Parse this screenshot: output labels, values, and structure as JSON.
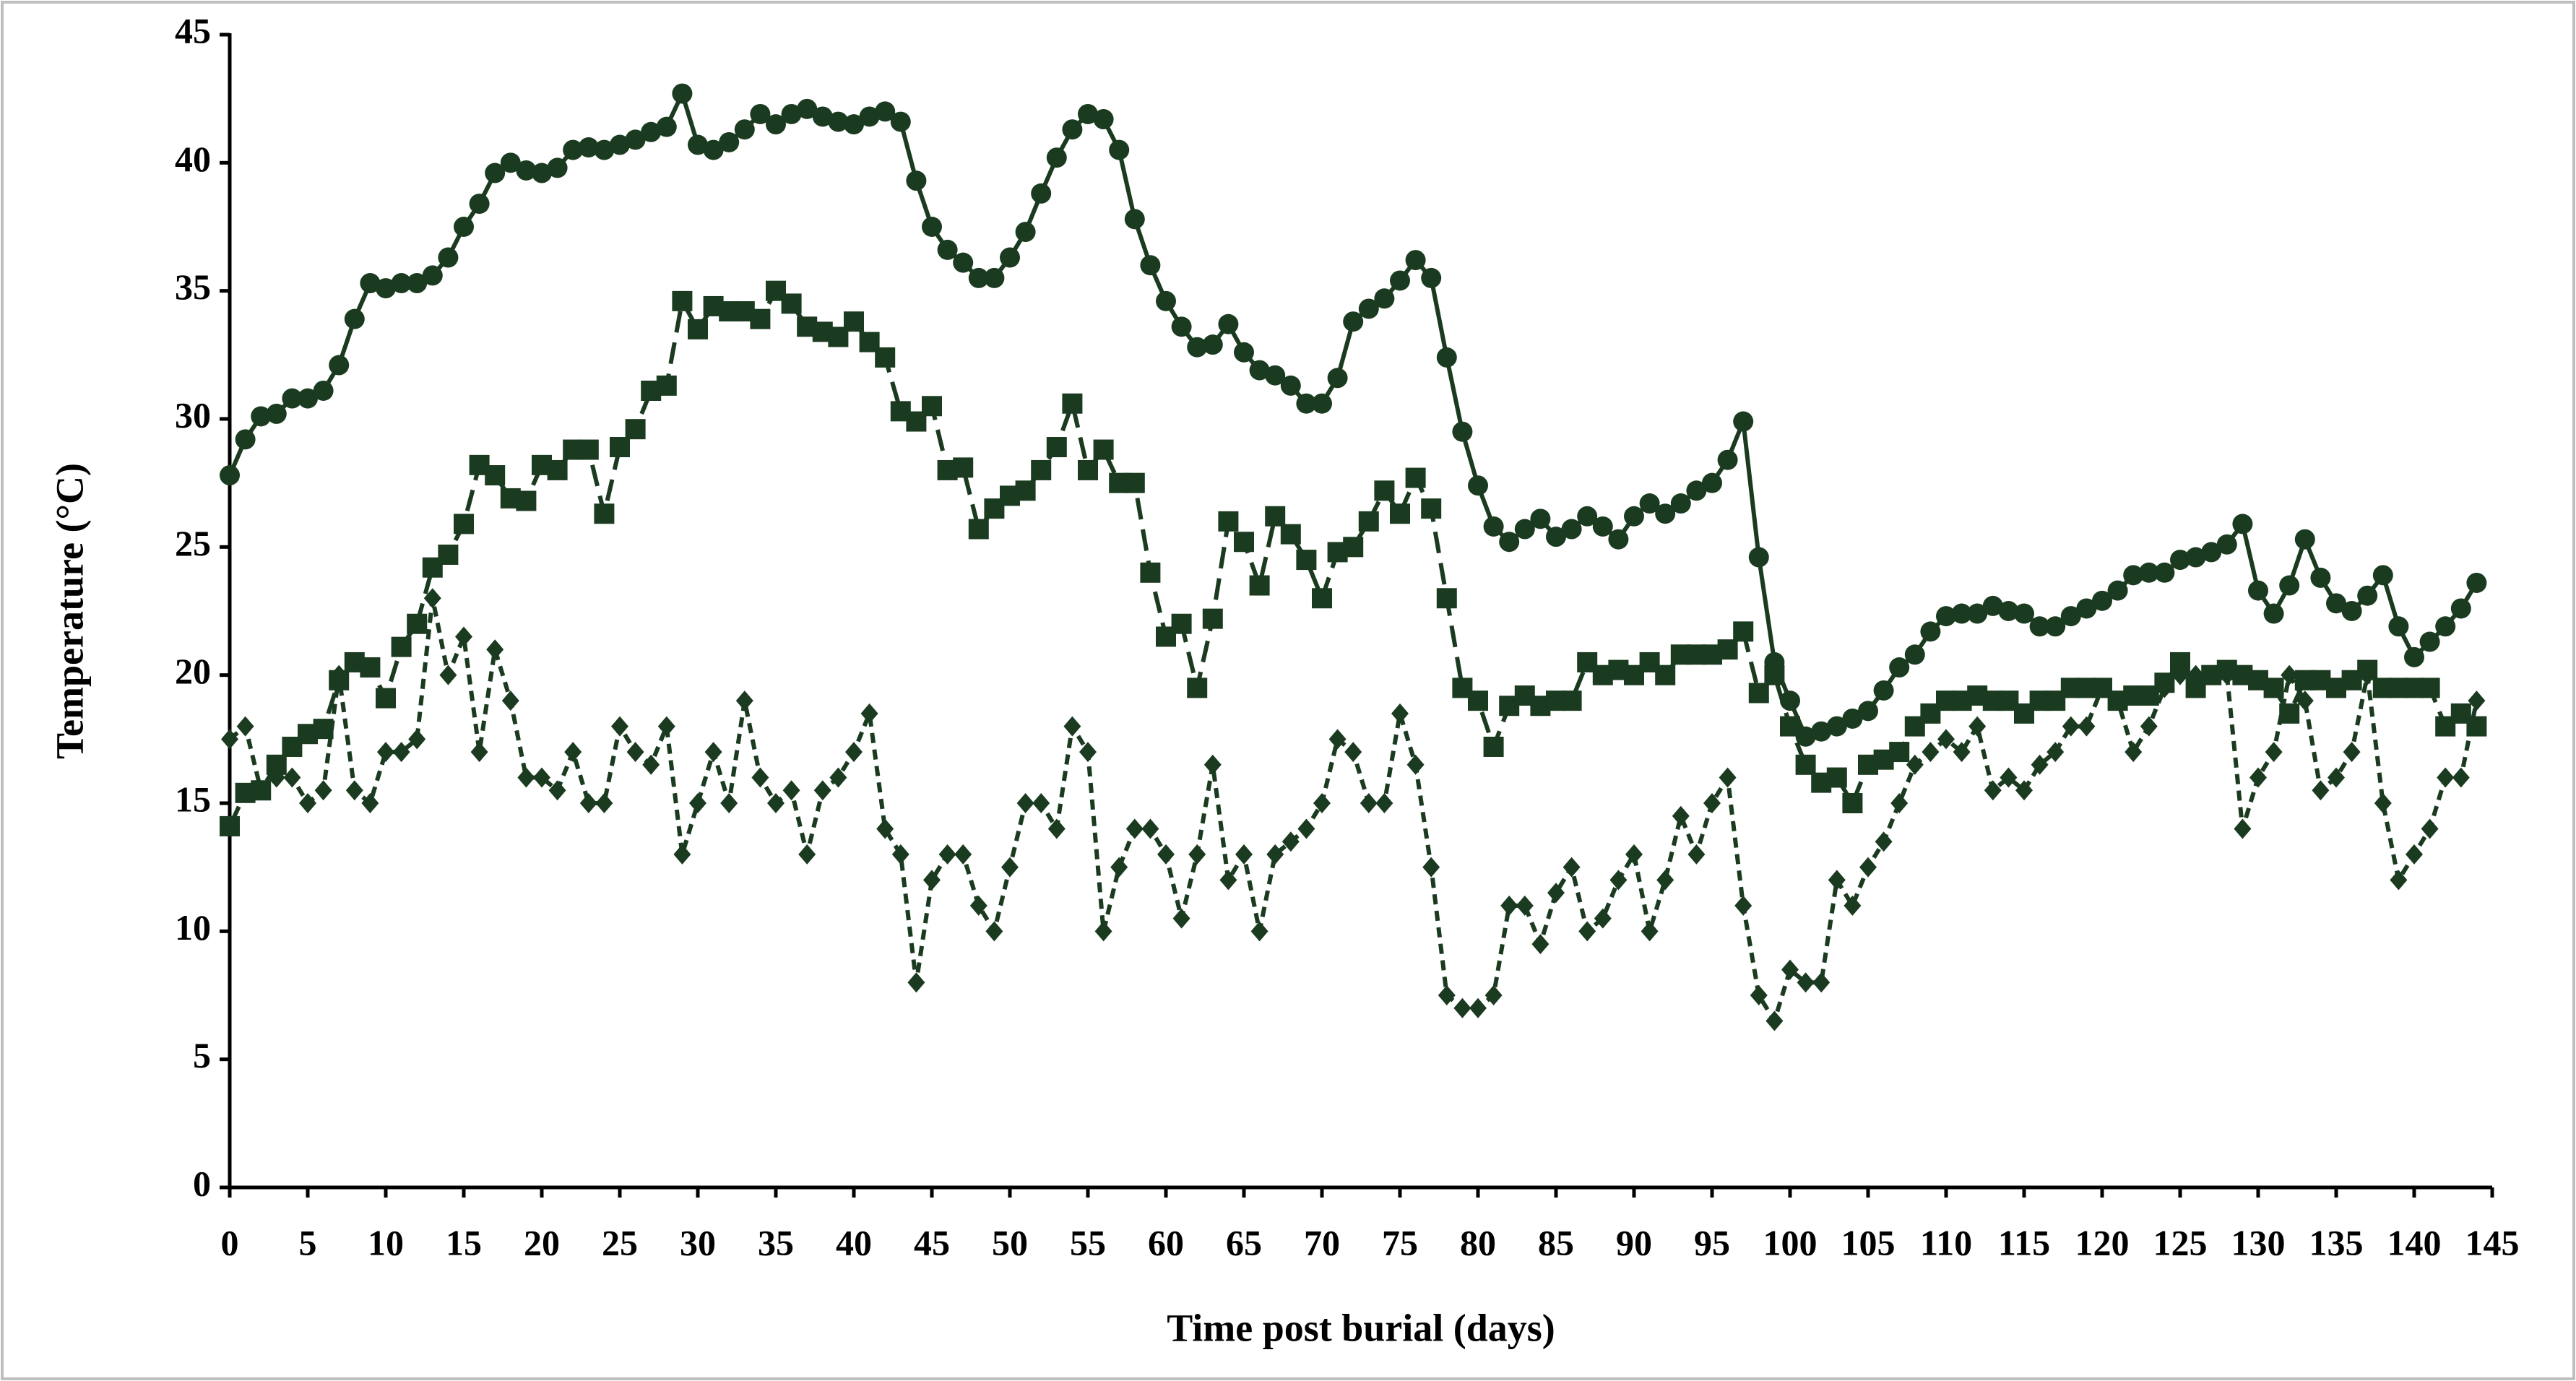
{
  "chart_data": {
    "type": "line",
    "xlabel": "Time post burial (days)",
    "ylabel": "Temperature (°C)",
    "x": [
      0,
      1,
      2,
      3,
      4,
      5,
      6,
      7,
      8,
      9,
      10,
      11,
      12,
      13,
      14,
      15,
      16,
      17,
      18,
      19,
      20,
      21,
      22,
      23,
      24,
      25,
      26,
      27,
      28,
      29,
      30,
      31,
      32,
      33,
      34,
      35,
      36,
      37,
      38,
      39,
      40,
      41,
      42,
      43,
      44,
      45,
      46,
      47,
      48,
      49,
      50,
      51,
      52,
      53,
      54,
      55,
      56,
      57,
      58,
      59,
      60,
      61,
      62,
      63,
      64,
      65,
      66,
      67,
      68,
      69,
      70,
      71,
      72,
      73,
      74,
      75,
      76,
      77,
      78,
      79,
      80,
      81,
      82,
      83,
      84,
      85,
      86,
      87,
      88,
      89,
      90,
      91,
      92,
      93,
      94,
      95,
      96,
      97,
      98,
      99,
      100,
      101,
      102,
      103,
      104,
      105,
      106,
      107,
      108,
      109,
      110,
      111,
      112,
      113,
      114,
      115,
      116,
      117,
      118,
      119,
      120,
      121,
      122,
      123,
      124,
      125,
      126,
      127,
      128,
      129,
      130,
      131,
      132,
      133,
      134,
      135,
      136,
      137,
      138,
      139,
      140,
      141,
      142,
      143,
      144
    ],
    "series": [
      {
        "color": "#1b3b20",
        "marker": "circle",
        "linestyle": "solid",
        "values": [
          27.8,
          29.2,
          30.1,
          30.2,
          30.8,
          30.8,
          31.1,
          32.1,
          33.9,
          35.3,
          35.1,
          35.3,
          35.3,
          35.6,
          36.3,
          37.5,
          38.4,
          39.6,
          40.0,
          39.7,
          39.6,
          39.8,
          40.5,
          40.6,
          40.5,
          40.7,
          40.9,
          41.2,
          41.4,
          42.7,
          40.7,
          40.5,
          40.8,
          41.3,
          41.9,
          41.5,
          41.9,
          42.1,
          41.8,
          41.6,
          41.5,
          41.8,
          42.0,
          41.6,
          39.3,
          37.5,
          36.6,
          36.1,
          35.5,
          35.5,
          36.3,
          37.3,
          38.8,
          40.2,
          41.3,
          41.9,
          41.7,
          40.5,
          37.8,
          36.0,
          34.6,
          33.6,
          32.8,
          32.9,
          33.7,
          32.6,
          31.9,
          31.7,
          31.3,
          30.6,
          30.6,
          31.6,
          33.8,
          34.3,
          34.7,
          35.4,
          36.2,
          35.5,
          32.4,
          29.5,
          27.4,
          25.8,
          25.2,
          25.7,
          26.1,
          25.4,
          25.7,
          26.2,
          25.8,
          25.3,
          26.2,
          26.7,
          26.3,
          26.7,
          27.2,
          27.5,
          28.4,
          29.9,
          24.6,
          20.5,
          19.0,
          17.6,
          17.8,
          18.0,
          18.3,
          18.6,
          19.4,
          20.3,
          20.8,
          21.7,
          22.3,
          22.4,
          22.4,
          22.7,
          22.5,
          22.4,
          21.9,
          21.9,
          22.3,
          22.6,
          22.9,
          23.3,
          23.9,
          24.0,
          24.0,
          24.5,
          24.6,
          24.8,
          25.1,
          25.9,
          23.3,
          22.4,
          23.5,
          25.3,
          23.8,
          22.8,
          22.5,
          23.1,
          23.9,
          21.9,
          20.7,
          21.3,
          21.9,
          22.6,
          23.6
        ]
      },
      {
        "color": "#1b3b20",
        "marker": "square",
        "linestyle": "dashed",
        "values": [
          14.1,
          15.4,
          15.5,
          16.5,
          17.2,
          17.7,
          17.9,
          19.8,
          20.5,
          20.3,
          19.1,
          21.1,
          22.0,
          24.2,
          24.7,
          25.9,
          28.2,
          27.8,
          26.9,
          26.8,
          28.2,
          28.0,
          28.8,
          28.8,
          26.3,
          28.9,
          29.6,
          31.1,
          31.3,
          34.6,
          33.5,
          34.4,
          34.2,
          34.2,
          33.9,
          35.0,
          34.5,
          33.6,
          33.4,
          33.2,
          33.8,
          33.0,
          32.4,
          30.3,
          29.9,
          30.5,
          28.0,
          28.1,
          25.7,
          26.5,
          27.0,
          27.2,
          28.0,
          28.9,
          30.6,
          28.0,
          28.8,
          27.5,
          27.5,
          24.0,
          21.5,
          22.0,
          19.5,
          22.2,
          26.0,
          25.2,
          23.5,
          26.2,
          25.5,
          24.5,
          23.0,
          24.8,
          25.0,
          26.0,
          27.2,
          26.3,
          27.7,
          26.5,
          23.0,
          19.5,
          19.0,
          17.2,
          18.8,
          19.2,
          18.8,
          19.0,
          19.0,
          20.5,
          20.0,
          20.2,
          20.0,
          20.5,
          20.0,
          20.8,
          20.8,
          20.8,
          21.0,
          21.7,
          19.3,
          20.0,
          18.0,
          16.5,
          15.8,
          16.0,
          15.0,
          16.5,
          16.7,
          17.0,
          18.0,
          18.5,
          19.0,
          19.0,
          19.2,
          19.0,
          19.0,
          18.5,
          19.0,
          19.0,
          19.5,
          19.5,
          19.5,
          19.0,
          19.2,
          19.2,
          19.7,
          20.5,
          19.5,
          20.0,
          20.2,
          20.0,
          19.8,
          19.5,
          18.5,
          19.8,
          19.8,
          19.5,
          19.8,
          20.2,
          19.5,
          19.5,
          19.5,
          19.5,
          18.0,
          18.5,
          18.0
        ]
      },
      {
        "color": "#1b3b20",
        "marker": "diamond",
        "linestyle": "dotted",
        "values": [
          17.5,
          18.0,
          15.5,
          16.0,
          16.0,
          15.0,
          15.5,
          20.0,
          15.5,
          15.0,
          17.0,
          17.0,
          17.5,
          23.0,
          20.0,
          21.5,
          17.0,
          21.0,
          19.0,
          16.0,
          16.0,
          15.5,
          17.0,
          15.0,
          15.0,
          18.0,
          17.0,
          16.5,
          18.0,
          13.0,
          15.0,
          17.0,
          15.0,
          19.0,
          16.0,
          15.0,
          15.5,
          13.0,
          15.5,
          16.0,
          17.0,
          18.5,
          14.0,
          13.0,
          8.0,
          12.0,
          13.0,
          13.0,
          11.0,
          10.0,
          12.5,
          15.0,
          15.0,
          14.0,
          18.0,
          17.0,
          10.0,
          12.5,
          14.0,
          14.0,
          13.0,
          10.5,
          13.0,
          16.5,
          12.0,
          13.0,
          10.0,
          13.0,
          13.5,
          14.0,
          15.0,
          17.5,
          17.0,
          15.0,
          15.0,
          18.5,
          16.5,
          12.5,
          7.5,
          7.0,
          7.0,
          7.5,
          11.0,
          11.0,
          9.5,
          11.5,
          12.5,
          10.0,
          10.5,
          12.0,
          13.0,
          10.0,
          12.0,
          14.5,
          13.0,
          15.0,
          16.0,
          11.0,
          7.5,
          6.5,
          8.5,
          8.0,
          8.0,
          12.0,
          11.0,
          12.5,
          13.5,
          15.0,
          16.5,
          17.0,
          17.5,
          17.0,
          18.0,
          15.5,
          16.0,
          15.5,
          16.5,
          17.0,
          18.0,
          18.0,
          19.5,
          19.0,
          17.0,
          18.0,
          19.5,
          20.0,
          20.0,
          20.0,
          20.0,
          14.0,
          16.0,
          17.0,
          20.0,
          19.0,
          15.5,
          16.0,
          17.0,
          20.0,
          15.0,
          12.0,
          13.0,
          14.0,
          16.0,
          16.0,
          19.0
        ]
      }
    ],
    "xlim": [
      0,
      145
    ],
    "xticks": [
      0,
      5,
      10,
      15,
      20,
      25,
      30,
      35,
      40,
      45,
      50,
      55,
      60,
      65,
      70,
      75,
      80,
      85,
      90,
      95,
      100,
      105,
      110,
      115,
      120,
      125,
      130,
      135,
      140,
      145
    ],
    "ylim": [
      0,
      45
    ],
    "yticks": [
      0,
      5,
      10,
      15,
      20,
      25,
      30,
      35,
      40,
      45
    ],
    "grid": false
  }
}
